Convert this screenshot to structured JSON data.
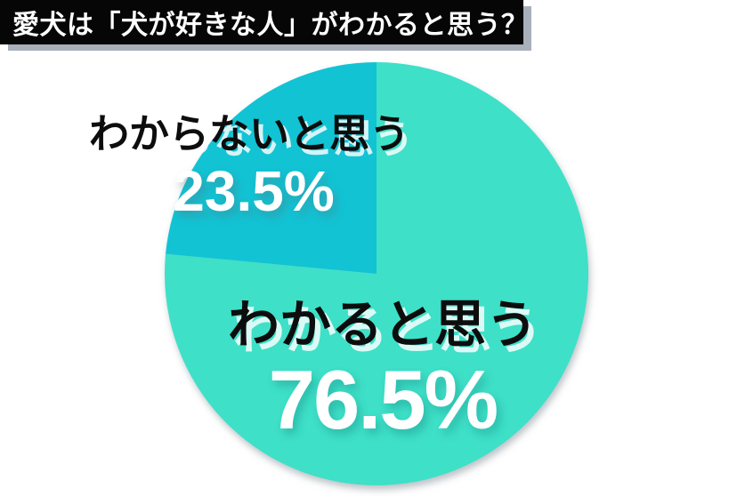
{
  "header": {
    "title": "愛犬は「犬が好きな人」がわかると思う？"
  },
  "chart_data": {
    "type": "pie",
    "title": "愛犬は「犬が好きな人」がわかると思う？",
    "direction": "clockwise",
    "start_angle": "12-oclock",
    "legend_position": "labels-on-chart",
    "slices": [
      {
        "label": "わかると思う",
        "value": 76.5,
        "display": "76.5%",
        "color": "#3ee0c8"
      },
      {
        "label": "わからないと思う",
        "value": 23.5,
        "display": "23.5%",
        "color": "#12c3d4"
      }
    ]
  },
  "colors": {
    "background": "#ffffff",
    "banner_bg": "#060606",
    "banner_text": "#ffffff",
    "banner_shadow": "#a9b0bb",
    "label_text": "#0d0d0d",
    "value_text": "#ffffff"
  }
}
